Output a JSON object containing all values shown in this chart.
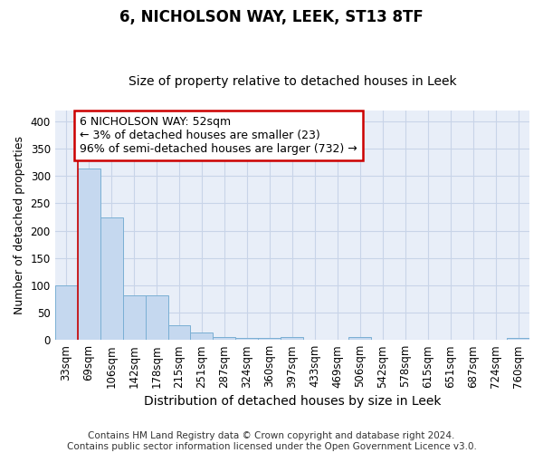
{
  "title": "6, NICHOLSON WAY, LEEK, ST13 8TF",
  "subtitle": "Size of property relative to detached houses in Leek",
  "xlabel": "Distribution of detached houses by size in Leek",
  "ylabel": "Number of detached properties",
  "footer_line1": "Contains HM Land Registry data © Crown copyright and database right 2024.",
  "footer_line2": "Contains public sector information licensed under the Open Government Licence v3.0.",
  "categories": [
    "33sqm",
    "69sqm",
    "106sqm",
    "142sqm",
    "178sqm",
    "215sqm",
    "251sqm",
    "287sqm",
    "324sqm",
    "360sqm",
    "397sqm",
    "433sqm",
    "469sqm",
    "506sqm",
    "542sqm",
    "578sqm",
    "615sqm",
    "651sqm",
    "687sqm",
    "724sqm",
    "760sqm"
  ],
  "values": [
    99,
    313,
    224,
    81,
    81,
    26,
    14,
    6,
    4,
    4,
    6,
    0,
    0,
    5,
    0,
    0,
    0,
    0,
    0,
    0,
    3
  ],
  "bar_color": "#c5d8ef",
  "bar_edge_color": "#7aafd4",
  "grid_color": "#c8d4e8",
  "background_color": "#e8eef8",
  "annotation_line1": "6 NICHOLSON WAY: 52sqm",
  "annotation_line2": "← 3% of detached houses are smaller (23)",
  "annotation_line3": "96% of semi-detached houses are larger (732) →",
  "annotation_box_color": "white",
  "annotation_box_edge_color": "#cc0000",
  "property_line_x": 0.5,
  "ylim": [
    0,
    420
  ],
  "yticks": [
    0,
    50,
    100,
    150,
    200,
    250,
    300,
    350,
    400
  ],
  "title_fontsize": 12,
  "subtitle_fontsize": 10,
  "tick_fontsize": 8.5,
  "ylabel_fontsize": 9,
  "xlabel_fontsize": 10,
  "annotation_fontsize": 9,
  "footer_fontsize": 7.5
}
